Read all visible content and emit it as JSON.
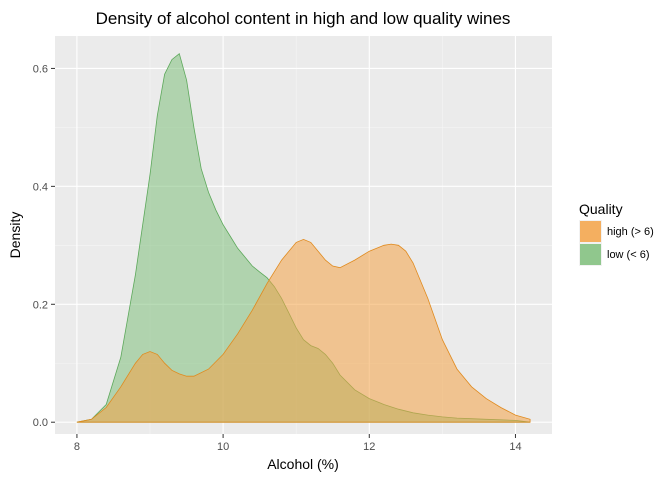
{
  "chart_data": {
    "type": "area",
    "title": "Density of alcohol content in high and low quality wines",
    "xlabel": "Alcohol (%)",
    "ylabel": "Density",
    "xlim": [
      7.7,
      14.5
    ],
    "ylim": [
      -0.02,
      0.655
    ],
    "x_ticks": [
      8,
      10,
      12,
      14
    ],
    "y_ticks": [
      0.0,
      0.2,
      0.4,
      0.6
    ],
    "y_tick_labels": [
      "0.0",
      "0.2",
      "0.4",
      "0.6"
    ],
    "x_tick_labels": [
      "8",
      "10",
      "12",
      "14"
    ],
    "grid": true,
    "legend": {
      "title": "Quality",
      "position": "right"
    },
    "series": [
      {
        "name": "low (< 6)",
        "fill": "#7fbf7b",
        "stroke": "#5ca85a",
        "x": [
          8.0,
          8.2,
          8.4,
          8.6,
          8.8,
          9.0,
          9.1,
          9.2,
          9.3,
          9.4,
          9.5,
          9.6,
          9.7,
          9.8,
          9.9,
          10.0,
          10.1,
          10.2,
          10.3,
          10.4,
          10.5,
          10.6,
          10.7,
          10.8,
          10.9,
          11.0,
          11.1,
          11.2,
          11.3,
          11.4,
          11.5,
          11.6,
          11.8,
          12.0,
          12.2,
          12.4,
          12.6,
          12.8,
          13.0,
          13.2,
          13.4,
          13.6,
          13.8,
          14.0,
          14.2
        ],
        "y": [
          0.0,
          0.005,
          0.03,
          0.11,
          0.25,
          0.42,
          0.52,
          0.59,
          0.615,
          0.625,
          0.58,
          0.5,
          0.43,
          0.39,
          0.36,
          0.335,
          0.315,
          0.295,
          0.28,
          0.265,
          0.255,
          0.245,
          0.23,
          0.21,
          0.185,
          0.16,
          0.14,
          0.13,
          0.125,
          0.115,
          0.1,
          0.08,
          0.055,
          0.04,
          0.03,
          0.022,
          0.016,
          0.012,
          0.009,
          0.007,
          0.006,
          0.005,
          0.004,
          0.003,
          0.0
        ]
      },
      {
        "name": "high (> 6)",
        "fill": "#f4a346",
        "stroke": "#e08a1e",
        "x": [
          8.0,
          8.2,
          8.4,
          8.6,
          8.8,
          8.9,
          9.0,
          9.1,
          9.2,
          9.3,
          9.4,
          9.5,
          9.6,
          9.8,
          10.0,
          10.2,
          10.4,
          10.6,
          10.8,
          11.0,
          11.1,
          11.2,
          11.3,
          11.4,
          11.5,
          11.6,
          11.8,
          12.0,
          12.2,
          12.3,
          12.4,
          12.5,
          12.6,
          12.8,
          13.0,
          13.2,
          13.4,
          13.6,
          13.8,
          14.0,
          14.2
        ],
        "y": [
          0.0,
          0.005,
          0.025,
          0.06,
          0.1,
          0.115,
          0.12,
          0.115,
          0.1,
          0.088,
          0.082,
          0.078,
          0.078,
          0.09,
          0.115,
          0.15,
          0.19,
          0.235,
          0.275,
          0.305,
          0.31,
          0.305,
          0.29,
          0.275,
          0.265,
          0.262,
          0.275,
          0.29,
          0.3,
          0.302,
          0.3,
          0.29,
          0.27,
          0.21,
          0.14,
          0.09,
          0.06,
          0.04,
          0.025,
          0.012,
          0.005
        ]
      }
    ],
    "legend_items": [
      {
        "label": "high (> 6)",
        "color": "#f4a346"
      },
      {
        "label": "low (< 6)",
        "color": "#7fbf7b"
      }
    ]
  }
}
